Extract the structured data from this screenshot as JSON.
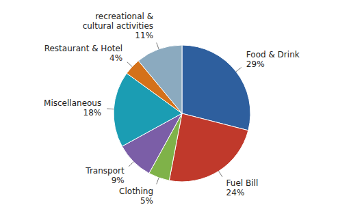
{
  "chart_data": {
    "type": "pie",
    "categories": [
      "Food & Drink",
      "Fuel Bill",
      "Clothing",
      "Transport",
      "Miscellaneous",
      "Restaurant & Hotel",
      "recreational &\ncultural activities"
    ],
    "values": [
      29,
      24,
      5,
      9,
      18,
      4,
      11
    ],
    "value_labels": [
      "29%",
      "24%",
      "5%",
      "9%",
      "18%",
      "4%",
      "11%"
    ],
    "colors": [
      "#2E5F9E",
      "#C0392B",
      "#7FB249",
      "#7B5EA7",
      "#1B9DB3",
      "#D4711A",
      "#8BAABF"
    ],
    "data_labels": true
  }
}
